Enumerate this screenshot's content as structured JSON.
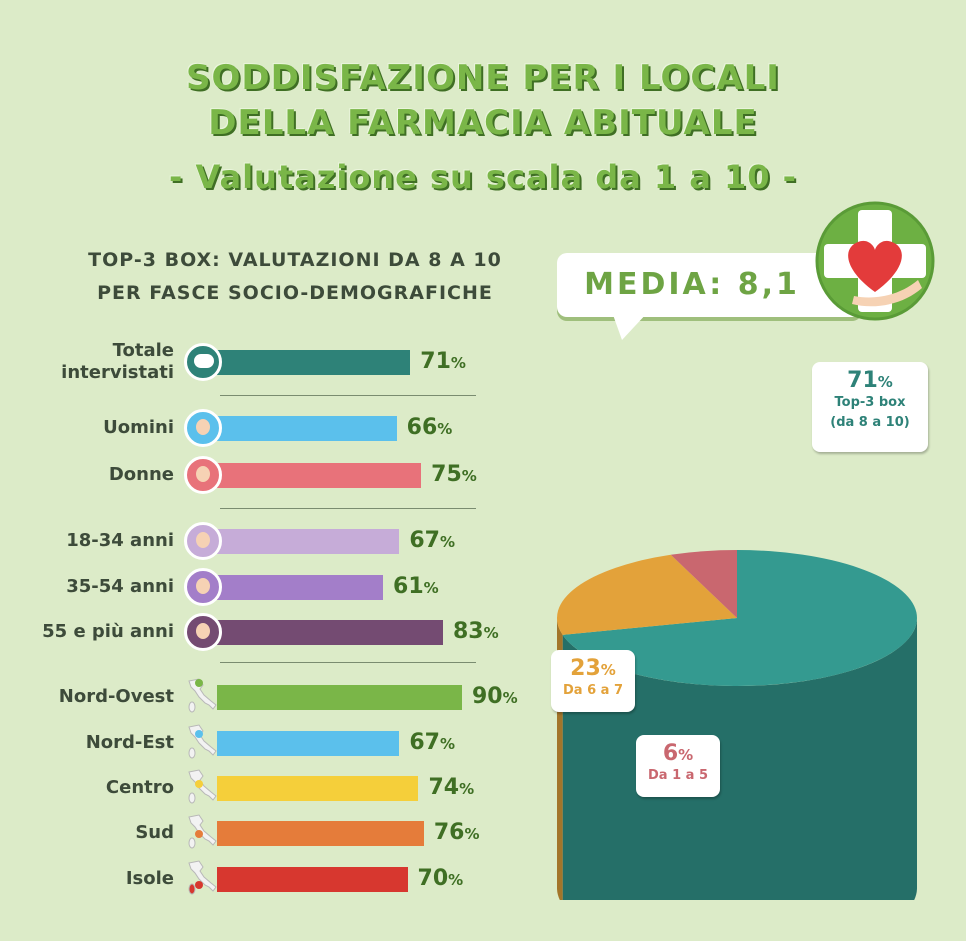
{
  "title_line1": "SODDISFAZIONE PER I LOCALI",
  "title_line2": "DELLA FARMACIA ABITUALE",
  "subtitle": "- Valutazione su scala da 1 a 10 -",
  "subhead_line1": "TOP-3 BOX: VALUTAZIONI DA 8 A 10",
  "subhead_line2": "PER FASCE SOCIO-DEMOGRAFICHE",
  "media_label": "MEDIA: 8,1",
  "percent_sign": "%",
  "colors": {
    "background": "#dcebc8",
    "title_green": "#7ab648",
    "teal": "#2f8c80",
    "orange": "#e3a23a",
    "rose": "#c96b74"
  },
  "chart_data": [
    {
      "type": "bar",
      "orientation": "horizontal",
      "title": "TOP-3 BOX: VALUTAZIONI DA 8 A 10 PER FASCE SOCIO-DEMOGRAFICHE",
      "unit": "%",
      "groups": [
        {
          "rows": [
            {
              "label": [
                "Totale",
                "intervistati"
              ],
              "value": 71,
              "color": "#2e8278",
              "icon": "chat-bubble-icon"
            }
          ]
        },
        {
          "rows": [
            {
              "label": [
                "Uomini"
              ],
              "value": 66,
              "color": "#5bc0ec",
              "icon": "man-avatar-icon"
            },
            {
              "label": [
                "Donne"
              ],
              "value": 75,
              "color": "#e8727a",
              "icon": "woman-avatar-icon"
            }
          ]
        },
        {
          "rows": [
            {
              "label": [
                "18-34 anni"
              ],
              "value": 67,
              "color": "#c6acd8",
              "icon": "young-avatar-icon"
            },
            {
              "label": [
                "35-54 anni"
              ],
              "value": 61,
              "color": "#a37ec9",
              "icon": "adult-avatar-icon"
            },
            {
              "label": [
                "55 e più anni"
              ],
              "value": 83,
              "color": "#744b72",
              "icon": "senior-avatar-icon"
            }
          ]
        },
        {
          "rows": [
            {
              "label": [
                "Nord-Ovest"
              ],
              "value": 90,
              "color": "#7ab648",
              "icon": "italy-map-icon"
            },
            {
              "label": [
                "Nord-Est"
              ],
              "value": 67,
              "color": "#5bc0ec",
              "icon": "italy-map-icon"
            },
            {
              "label": [
                "Centro"
              ],
              "value": 74,
              "color": "#f5cf3a",
              "icon": "italy-map-icon"
            },
            {
              "label": [
                "Sud"
              ],
              "value": 76,
              "color": "#e57c3a",
              "icon": "italy-map-icon"
            },
            {
              "label": [
                "Isole"
              ],
              "value": 70,
              "color": "#d7372f",
              "icon": "italy-map-icon"
            }
          ]
        }
      ]
    },
    {
      "type": "pie",
      "style": "3d-cylinder",
      "slices": [
        {
          "value": 71,
          "label": "Top-3 box",
          "sublabel": "(da 8 a 10)",
          "color": "#349a90"
        },
        {
          "value": 23,
          "label": "Da 6 a 7",
          "color": "#e3a23a"
        },
        {
          "value": 6,
          "label": "Da 1 a 5",
          "color": "#c9676f"
        }
      ]
    }
  ]
}
